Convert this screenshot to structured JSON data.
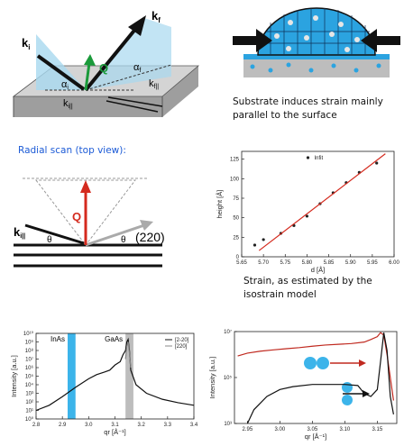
{
  "diagrams": {
    "scattering": {
      "k_i": {
        "base": "k",
        "sub": "i"
      },
      "k_f": {
        "base": "k",
        "sub": "f"
      },
      "Q": "Q",
      "alpha_i": {
        "base": "α",
        "sub": "i"
      },
      "alpha_f": {
        "base": "α",
        "sub": "f"
      },
      "kf_par": {
        "base": "k",
        "sub": "f||"
      },
      "ki_par": {
        "base": "k",
        "sub": "i||"
      }
    },
    "strain": {
      "caption": "Substrate induces strain mainly parallel to the surface"
    },
    "radial": {
      "title": "Radial scan (top view):",
      "Q": "Q",
      "ki_par": {
        "base": "k",
        "sub": "i||"
      },
      "theta_left": "θ",
      "theta_right": "θ",
      "reflection": "(220)"
    }
  },
  "chart_data": [
    {
      "type": "scatter",
      "caption": "Strain, as estimated by the isostrain model",
      "xlabel": "d [Å]",
      "ylabel": "height [Å]",
      "xlim": [
        5.65,
        6.0
      ],
      "xticks": [
        5.65,
        {
          "value": 5.7,
          "label": "5.70"
        },
        5.75,
        {
          "value": 5.8,
          "label": "5.80"
        },
        5.85,
        {
          "value": 5.9,
          "label": "5.90"
        },
        5.95,
        {
          "value": 6,
          "label": "6.00"
        }
      ],
      "ylim": [
        0,
        135
      ],
      "yticks": [
        0,
        25,
        50,
        75,
        100,
        125
      ],
      "legend": "top",
      "series": [
        {
          "name": "Infit",
          "mode": "markers",
          "color": "#222222",
          "x": [
            5.68,
            5.7,
            5.74,
            5.77,
            5.8,
            5.83,
            5.86,
            5.89,
            5.92,
            5.96
          ],
          "values": [
            15,
            22,
            30,
            40,
            52,
            68,
            82,
            95,
            108,
            120
          ]
        },
        {
          "mode": "line",
          "color": "#d42a1e",
          "x": [
            5.69,
            5.98
          ],
          "values": [
            8,
            132
          ]
        }
      ]
    },
    {
      "type": "line",
      "xlabel": "qr [Å⁻¹]",
      "ylabel": "Intensity [a.u.]",
      "ylog": true,
      "legend": "top-right",
      "xlim": [
        2.8,
        3.4
      ],
      "xticks": [
        2.8,
        2.9,
        {
          "value": 3,
          "label": "3.0"
        },
        3.1,
        3.2,
        3.3,
        3.4
      ],
      "ylim": [
        1,
        10000000000
      ],
      "yticks": [
        {
          "value": 1,
          "label": "10⁰"
        },
        {
          "value": 10,
          "label": "10¹"
        },
        {
          "value": 100,
          "label": "10²"
        },
        {
          "value": 1000,
          "label": "10³"
        },
        {
          "value": 10000,
          "label": "10⁴"
        },
        {
          "value": 100000,
          "label": "10⁵"
        },
        {
          "value": 1000000,
          "label": "10⁶"
        },
        {
          "value": 10000000,
          "label": "10⁷"
        },
        {
          "value": 100000000,
          "label": "10⁸"
        },
        {
          "value": 1000000000,
          "label": "10⁹"
        },
        {
          "value": 10000000000,
          "label": "10¹⁰"
        }
      ],
      "bands": [
        {
          "label": "InAs",
          "range": [
            2.92,
            2.95
          ],
          "color": "#3cb4ea"
        },
        {
          "label": "GaAs",
          "range": [
            3.14,
            3.17
          ],
          "color": "#bdbdbd"
        }
      ],
      "series": [
        {
          "name": "[2-20]",
          "color": "#111111",
          "x": [
            2.8,
            2.85,
            2.9,
            2.95,
            3.0,
            3.03,
            3.06,
            3.08,
            3.1,
            3.12,
            3.13,
            3.14,
            3.145,
            3.15,
            3.155,
            3.16,
            3.18,
            3.22,
            3.28,
            3.34,
            3.4
          ],
          "values": [
            10,
            40,
            400,
            5000,
            50000,
            150000,
            300000,
            500000,
            2000000,
            5000000,
            30000000,
            100000000,
            1000000000,
            2000000000,
            100000000,
            500000,
            10000,
            1000,
            200,
            80,
            40
          ]
        },
        {
          "name": "[220]",
          "color": "#888888",
          "x": [
            3.14,
            3.145,
            3.15,
            3.155,
            3.16
          ],
          "values": [
            10000000,
            300000000,
            1000000000,
            50000000,
            1000000
          ]
        }
      ]
    },
    {
      "type": "line",
      "xlabel": "qr [Å⁻¹]",
      "ylabel": "Intensity [a.u.]",
      "ylog": true,
      "xlim": [
        2.93,
        3.18
      ],
      "xticks": [
        2.95,
        {
          "value": 3,
          "label": "3.00"
        },
        3.05,
        {
          "value": 3.1,
          "label": "3.10"
        },
        3.15
      ],
      "ylim": [
        1000,
        10000000
      ],
      "yticks": [
        {
          "value": 1000,
          "label": "10³"
        },
        {
          "value": 100000,
          "label": "10⁵"
        },
        {
          "value": 10000000,
          "label": "10⁷"
        }
      ],
      "series": [
        {
          "color": "#c0291f",
          "x": [
            2.935,
            2.95,
            2.97,
            2.99,
            3.01,
            3.03,
            3.05,
            3.07,
            3.09,
            3.11,
            3.13,
            3.14,
            3.15,
            3.155,
            3.16,
            3.165,
            3.17,
            3.175
          ],
          "values": [
            870000,
            1150000,
            1400000,
            1600000,
            1800000,
            2000000,
            2300000,
            2600000,
            2800000,
            3000000,
            3500000,
            4500000,
            6000000,
            9000000,
            7000000,
            1000000,
            100000,
            10000
          ]
        },
        {
          "color": "#111111",
          "x": [
            2.95,
            2.96,
            2.98,
            3.0,
            3.02,
            3.05,
            3.08,
            3.1,
            3.12,
            3.13,
            3.14,
            3.15,
            3.155,
            3.16,
            3.165,
            3.17,
            3.175
          ],
          "values": [
            1000,
            4000,
            15000,
            30000,
            40000,
            50000,
            50000,
            50000,
            45000,
            20000,
            15000,
            30000,
            500000,
            9000000,
            1500000,
            15000,
            2500
          ]
        }
      ]
    }
  ]
}
